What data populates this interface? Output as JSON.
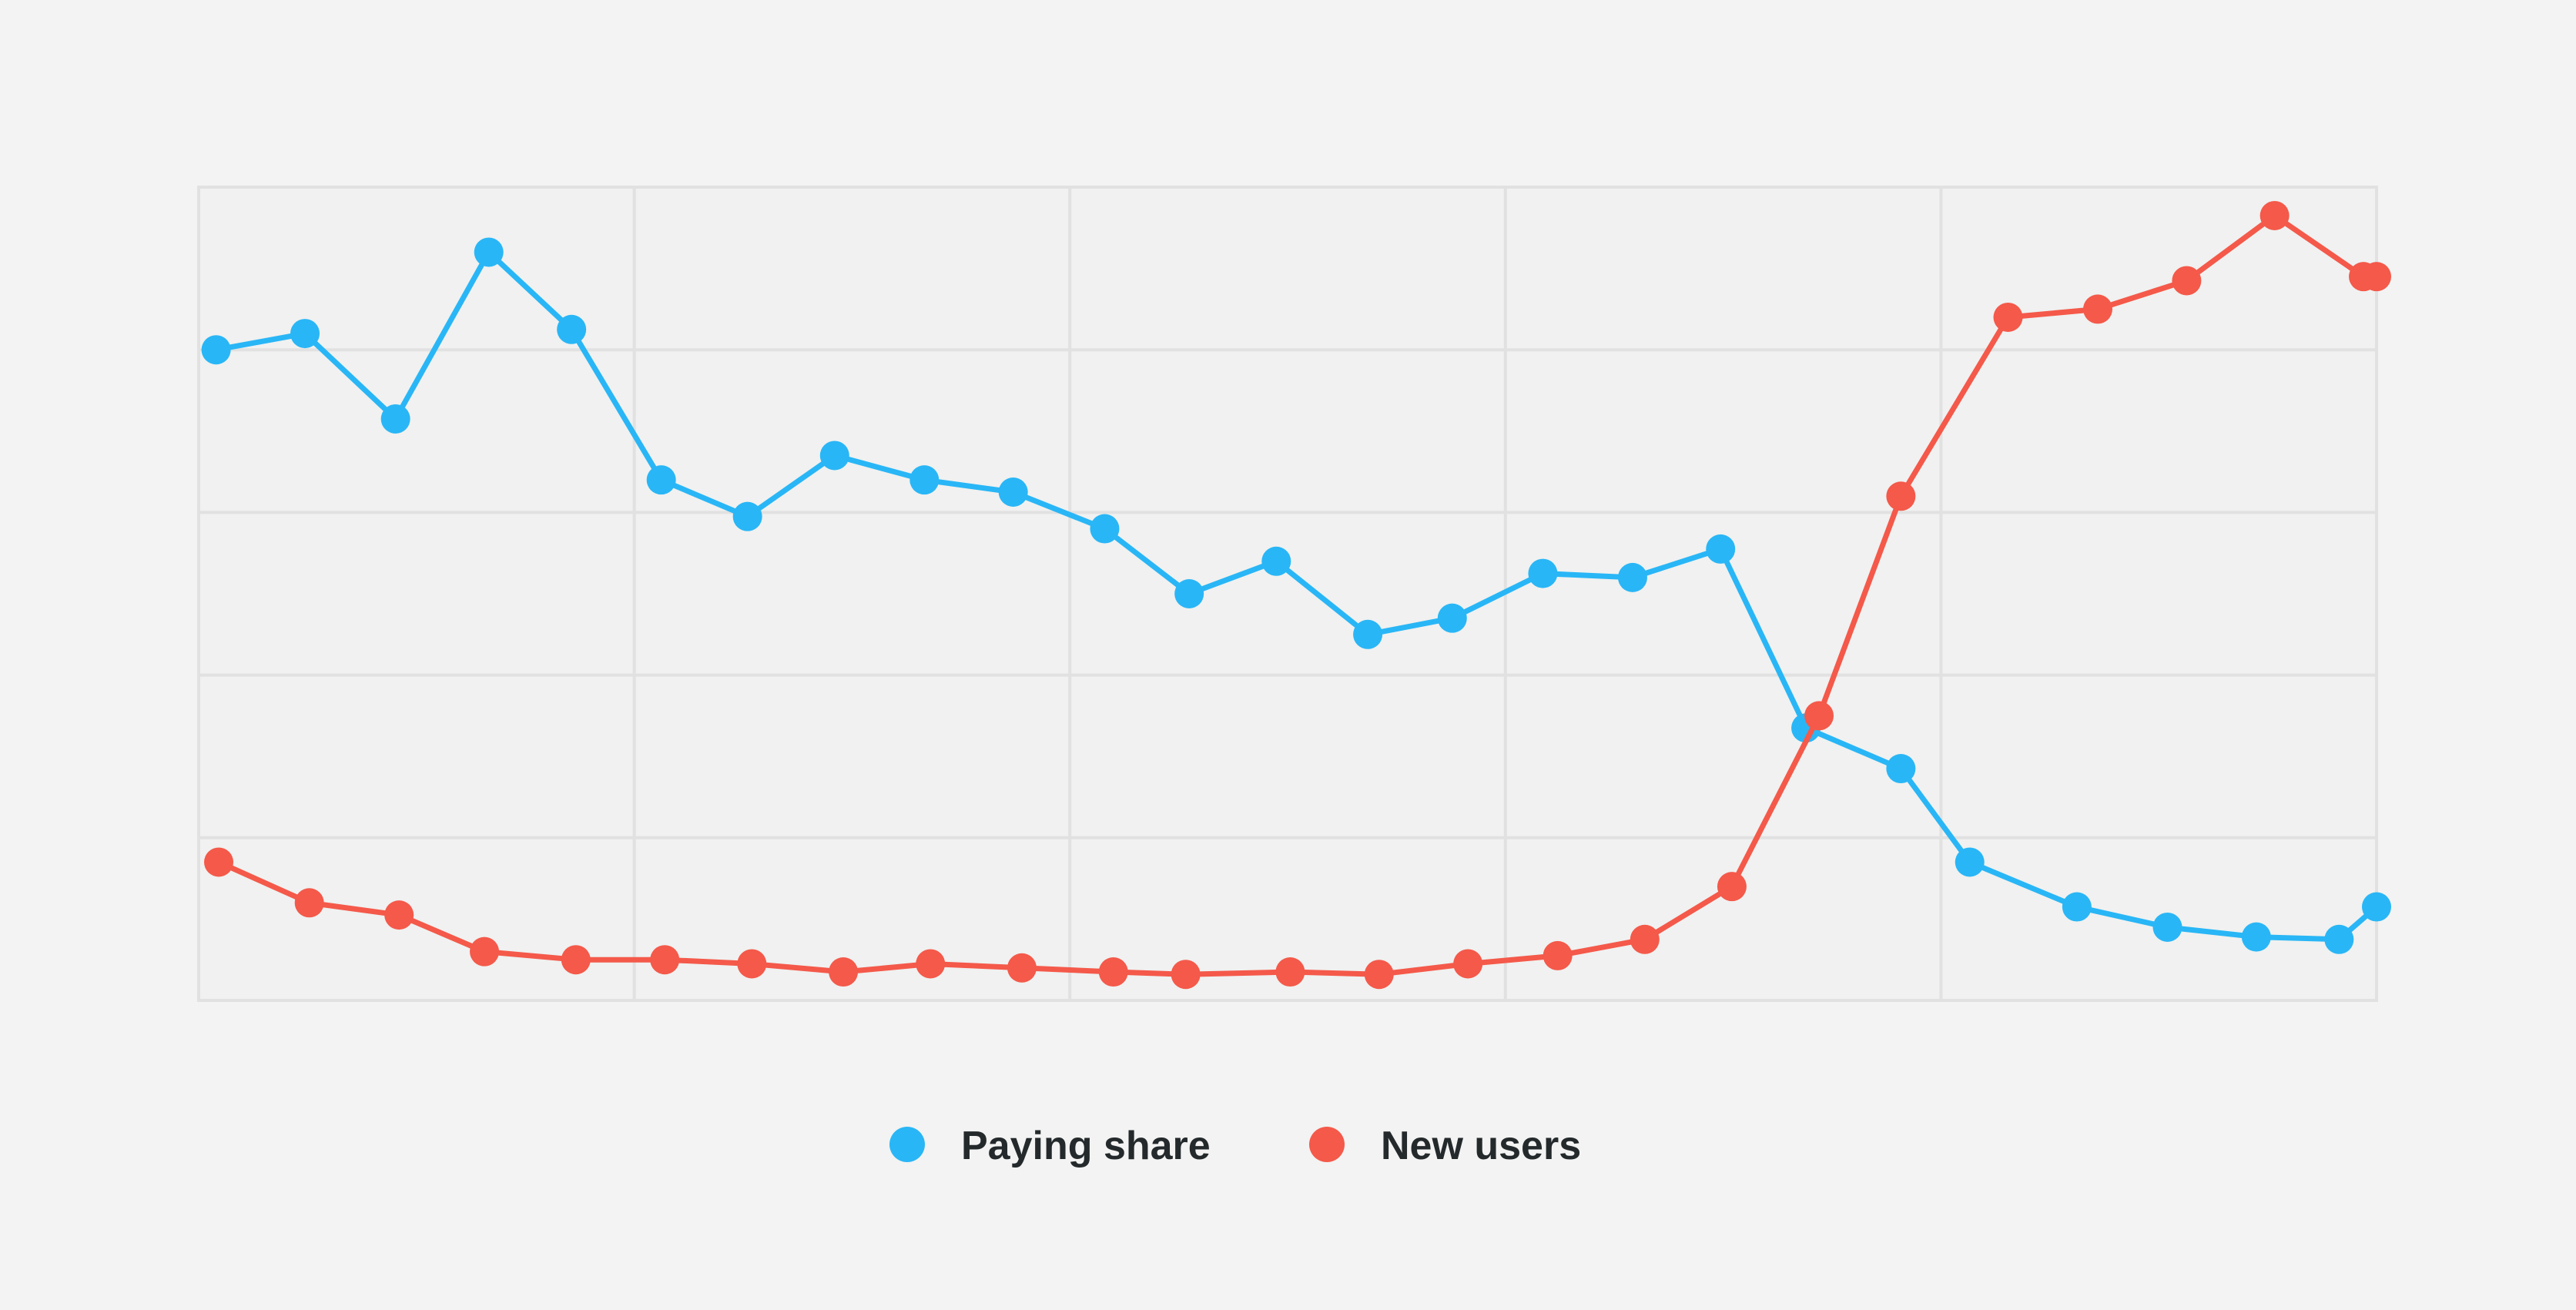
{
  "chart_data": {
    "type": "line",
    "title": "",
    "xlabel": "",
    "ylabel": "",
    "xlim": [
      0,
      25
    ],
    "ylim": [
      0,
      100
    ],
    "grid": true,
    "legend_position": "bottom-center",
    "x": [
      0.2,
      1.22,
      2.26,
      3.33,
      4.28,
      5.31,
      6.3,
      7.3,
      8.33,
      9.35,
      10.4,
      11.37,
      12.37,
      13.42,
      14.39,
      15.43,
      16.46,
      17.47,
      18.45,
      19.54,
      20.33,
      21.56,
      22.6,
      23.62,
      24.57,
      25.0
    ],
    "series": [
      {
        "name": "Paying share",
        "color": "#29b6f6",
        "x": [
          0.2,
          1.22,
          2.26,
          3.33,
          4.28,
          5.31,
          6.3,
          7.3,
          8.33,
          9.35,
          10.4,
          11.37,
          12.37,
          13.42,
          14.39,
          15.43,
          16.46,
          17.47,
          18.45,
          19.54,
          20.33,
          21.56,
          22.6,
          23.62,
          24.57,
          25.0
        ],
        "values": [
          80.0,
          82.0,
          71.5,
          92.0,
          82.5,
          64.0,
          59.5,
          67.0,
          64.0,
          62.5,
          58.0,
          50.0,
          54.0,
          45.0,
          47.0,
          52.5,
          52.0,
          55.5,
          33.5,
          28.5,
          17.0,
          11.5,
          9.0,
          7.8,
          7.5,
          11.5
        ]
      },
      {
        "name": "New users",
        "color": "#f4594a",
        "x": [
          0.23,
          1.27,
          2.3,
          3.28,
          4.33,
          5.35,
          6.35,
          7.4,
          8.4,
          9.45,
          10.5,
          11.33,
          12.53,
          13.55,
          14.57,
          15.6,
          16.6,
          17.6,
          18.6,
          19.54,
          20.77,
          21.8,
          22.82,
          23.83,
          24.85,
          25.0
        ],
        "values": [
          17.0,
          12.0,
          10.5,
          6.0,
          5.0,
          5.0,
          4.5,
          3.5,
          4.5,
          4.0,
          3.5,
          3.2,
          3.5,
          3.2,
          4.5,
          5.5,
          7.5,
          14.0,
          35.0,
          62.0,
          84.0,
          85.0,
          88.5,
          96.5,
          89.0,
          89.0
        ]
      }
    ]
  }
}
